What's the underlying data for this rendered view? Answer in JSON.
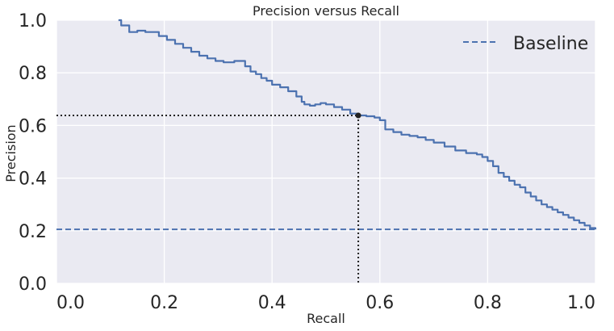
{
  "chart_data": {
    "type": "line",
    "title": "Precision versus Recall",
    "xlabel": "Recall",
    "ylabel": "Precision",
    "xlim": [
      0.0,
      1.0
    ],
    "ylim": [
      0.0,
      1.0
    ],
    "xticks": [
      "0.0",
      "0.2",
      "0.4",
      "0.6",
      "0.8",
      "1.0"
    ],
    "yticks": [
      "0.0",
      "0.2",
      "0.4",
      "0.6",
      "0.8",
      "1.0"
    ],
    "grid": true,
    "legend_position": "top-right",
    "series": [
      {
        "kind": "step",
        "color": "#4c72b0",
        "x": [
          0.115,
          0.12,
          0.135,
          0.15,
          0.165,
          0.18,
          0.19,
          0.205,
          0.22,
          0.235,
          0.25,
          0.265,
          0.28,
          0.295,
          0.31,
          0.32,
          0.33,
          0.34,
          0.35,
          0.36,
          0.37,
          0.38,
          0.39,
          0.4,
          0.415,
          0.43,
          0.445,
          0.455,
          0.46,
          0.47,
          0.48,
          0.49,
          0.5,
          0.515,
          0.53,
          0.545,
          0.56,
          0.575,
          0.59,
          0.6,
          0.61,
          0.625,
          0.64,
          0.655,
          0.67,
          0.685,
          0.7,
          0.72,
          0.74,
          0.76,
          0.78,
          0.79,
          0.8,
          0.81,
          0.82,
          0.83,
          0.84,
          0.85,
          0.86,
          0.87,
          0.88,
          0.89,
          0.9,
          0.91,
          0.92,
          0.93,
          0.94,
          0.95,
          0.96,
          0.97,
          0.98,
          0.99,
          1.0
        ],
        "y": [
          1.0,
          0.98,
          0.955,
          0.96,
          0.955,
          0.955,
          0.94,
          0.925,
          0.91,
          0.895,
          0.88,
          0.865,
          0.855,
          0.845,
          0.84,
          0.84,
          0.845,
          0.845,
          0.825,
          0.805,
          0.795,
          0.78,
          0.77,
          0.755,
          0.745,
          0.73,
          0.71,
          0.69,
          0.68,
          0.675,
          0.68,
          0.685,
          0.68,
          0.67,
          0.66,
          0.645,
          0.638,
          0.635,
          0.63,
          0.62,
          0.585,
          0.575,
          0.565,
          0.56,
          0.555,
          0.545,
          0.535,
          0.52,
          0.505,
          0.495,
          0.49,
          0.48,
          0.465,
          0.445,
          0.42,
          0.405,
          0.39,
          0.375,
          0.365,
          0.345,
          0.33,
          0.315,
          0.3,
          0.29,
          0.28,
          0.27,
          0.26,
          0.25,
          0.24,
          0.23,
          0.22,
          0.21,
          0.205
        ]
      },
      {
        "name": "Baseline",
        "kind": "hline",
        "style": "dashed",
        "color": "#4c72b0",
        "y": 0.205
      }
    ],
    "annotation": {
      "point": {
        "x": 0.56,
        "y": 0.638
      },
      "guides": "dotted",
      "color": "#222222"
    }
  },
  "colors": {
    "plot_background": "#eaeaf2",
    "grid": "#ffffff",
    "line": "#4c72b0"
  }
}
